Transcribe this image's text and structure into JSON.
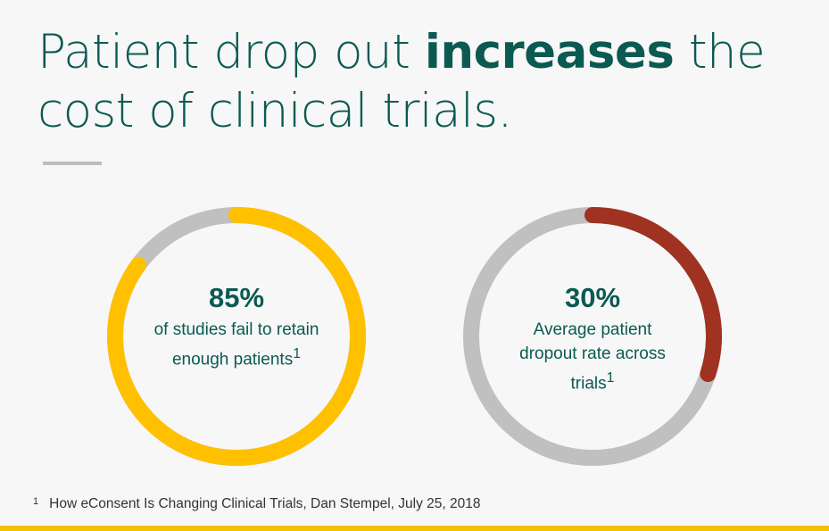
{
  "headline": {
    "part1": "Patient drop out ",
    "emphasis": "increases",
    "part2": " the cost of clinical trials."
  },
  "chart_data": [
    {
      "type": "pie",
      "value": 85,
      "unit": "%",
      "label": "85%",
      "caption": "of studies fail to retain enough patients",
      "footnote_ref": "1",
      "colors": {
        "filled": "#ffc000",
        "track": "#c0c0c0"
      }
    },
    {
      "type": "pie",
      "value": 30,
      "unit": "%",
      "label": "30%",
      "caption": "Average patient dropout rate across trials",
      "footnote_ref": "1",
      "colors": {
        "filled": "#a03222",
        "track": "#c0c0c0"
      }
    }
  ],
  "footnote": {
    "marker": "1",
    "text": "How eConsent Is Changing Clinical Trials, Dan Stempel, July 25, 2018"
  },
  "colors": {
    "title": "#0b5a52",
    "accent_bar": "#f2c200",
    "background": "#f7f7f7"
  }
}
